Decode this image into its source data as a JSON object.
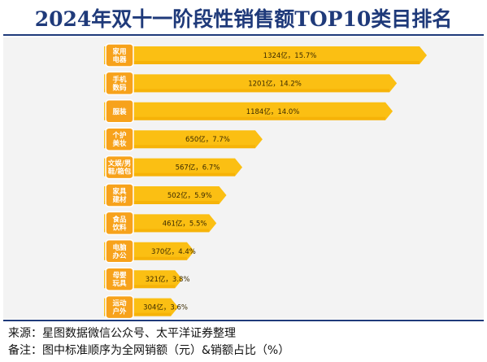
{
  "title": "2024年双十一阶段性销售额TOP10类目排名",
  "source": "来源：星图数据微信公众号、太平洋证券整理",
  "remark": "备注：图中标准顺序为全网销额（元）&销额占比（%）",
  "colors": {
    "bar": "#fbbf13",
    "bar_shade": "#f2a900",
    "badge": "#f7a21b",
    "title": "#1f3a7a",
    "panel": "#f3f3f3"
  },
  "chart_data": {
    "type": "bar",
    "orientation": "horizontal",
    "categories": [
      [
        "家用",
        "电器"
      ],
      [
        "手机",
        "数码"
      ],
      [
        "服装"
      ],
      [
        "个护",
        "美妆"
      ],
      [
        "文娱/男",
        "鞋/箱包"
      ],
      [
        "家具",
        "建材"
      ],
      [
        "食品",
        "饮料"
      ],
      [
        "电脑",
        "办公"
      ],
      [
        "母婴",
        "玩具"
      ],
      [
        "运动",
        "户外"
      ]
    ],
    "values": [
      1324,
      1201,
      1184,
      650,
      567,
      502,
      461,
      370,
      321,
      304
    ],
    "shares": [
      15.7,
      14.2,
      14.0,
      7.7,
      6.7,
      5.9,
      5.5,
      4.4,
      3.8,
      3.6
    ],
    "data_labels": [
      "1324亿，15.7%",
      "1201亿，14.2%",
      "1184亿，14.0%",
      "650亿，7.7%",
      "567亿，6.7%",
      "502亿，5.9%",
      "461亿，5.5%",
      "370亿，4.4%",
      "321亿，3.8%",
      "304亿，3.6%"
    ],
    "value_unit": "亿",
    "xlim": [
      0,
      1324
    ]
  }
}
